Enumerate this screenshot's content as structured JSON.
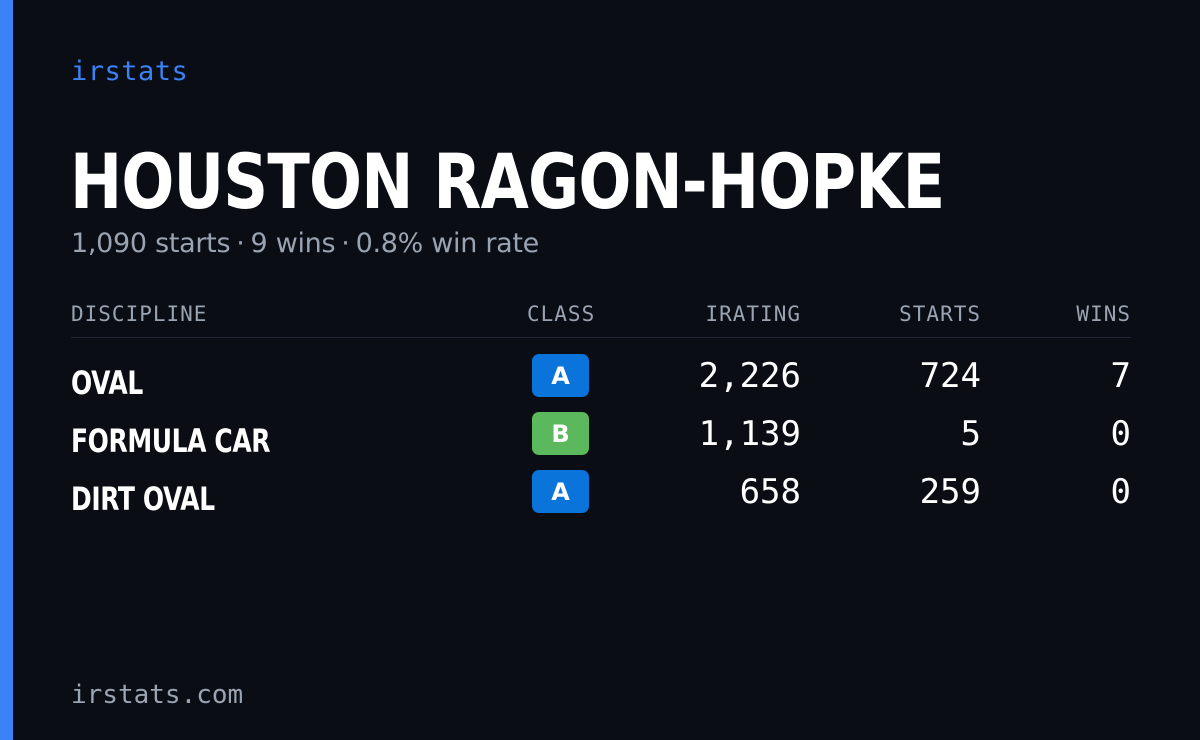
{
  "brand": "irstats",
  "driver": {
    "name": "HOUSTON RAGON-HOPKE",
    "summary": {
      "starts": "1,090 starts",
      "wins": "9 wins",
      "win_rate": "0.8% win rate",
      "separator": "·"
    }
  },
  "table": {
    "headers": {
      "discipline": "DISCIPLINE",
      "class": "CLASS",
      "irating": "IRATING",
      "starts": "STARTS",
      "wins": "WINS"
    },
    "rows": [
      {
        "discipline": "OVAL",
        "class": "A",
        "class_color": "#0a74da",
        "irating": "2,226",
        "starts": "724",
        "wins": "7"
      },
      {
        "discipline": "FORMULA CAR",
        "class": "B",
        "class_color": "#5cb85c",
        "irating": "1,139",
        "starts": "5",
        "wins": "0"
      },
      {
        "discipline": "DIRT OVAL",
        "class": "A",
        "class_color": "#0a74da",
        "irating": "658",
        "starts": "259",
        "wins": "0"
      }
    ]
  },
  "footer": "irstats.com",
  "colors": {
    "accent": "#3b82f6",
    "background": "#0a0d14",
    "muted": "#9aa3b2"
  }
}
